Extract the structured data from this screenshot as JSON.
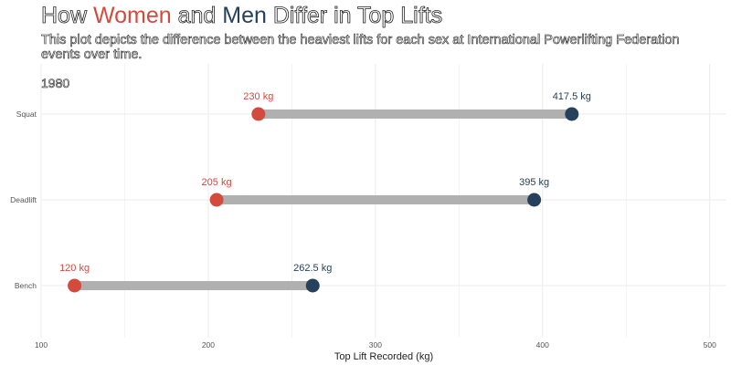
{
  "title": {
    "prefix": "How ",
    "women": "Women",
    "and": " and ",
    "men": "Men",
    "suffix": " Differ in Top Lifts"
  },
  "subtitle": "This plot depicts the difference between the heaviest lifts for each sex at International Powerlifting Federation events over time.",
  "year_label": "1980",
  "colors": {
    "women": "#d24b3c",
    "men": "#26415c",
    "segment": "#b0b0b0",
    "grid": "#ebebeb"
  },
  "chart_data": {
    "type": "dumbbell",
    "xlabel": "Top Lift Recorded (kg)",
    "xlim": [
      100,
      510
    ],
    "xticks": [
      100,
      200,
      300,
      400,
      500
    ],
    "categories": [
      "Squat",
      "Deadlift",
      "Bench"
    ],
    "series": [
      {
        "name": "Women",
        "values": [
          230,
          205,
          120
        ],
        "labels": [
          "230 kg",
          "205 kg",
          "120 kg"
        ]
      },
      {
        "name": "Men",
        "values": [
          417.5,
          395,
          262.5
        ],
        "labels": [
          "417.5 kg",
          "395 kg",
          "262.5 kg"
        ]
      }
    ],
    "grid": true,
    "legend": "none"
  }
}
